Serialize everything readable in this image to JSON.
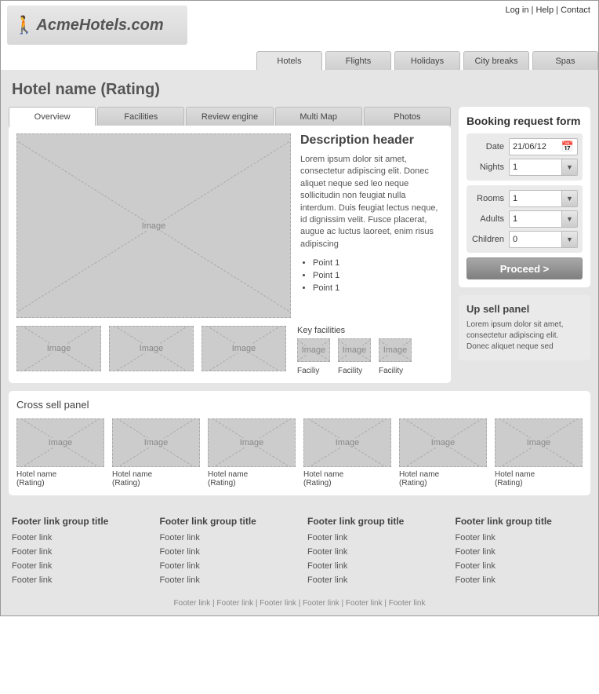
{
  "header": {
    "top_links": [
      "Log in",
      "Help",
      "Contact"
    ],
    "logo_text": "AcmeHotels.com"
  },
  "main_tabs": [
    {
      "label": "Hotels",
      "active": true
    },
    {
      "label": "Flights",
      "active": false
    },
    {
      "label": "Holidays",
      "active": false
    },
    {
      "label": "City breaks",
      "active": false
    },
    {
      "label": "Spas",
      "active": false
    }
  ],
  "page_title": "Hotel name (Rating)",
  "sub_tabs": [
    {
      "label": "Overview",
      "active": true
    },
    {
      "label": "Facilities",
      "active": false
    },
    {
      "label": "Review engine",
      "active": false
    },
    {
      "label": "Multi Map",
      "active": false
    },
    {
      "label": "Photos",
      "active": false
    }
  ],
  "image_label": "Image",
  "description": {
    "header": "Description header",
    "text": "Lorem ipsum dolor sit amet, consectetur adipiscing elit. Donec aliquet neque sed leo neque sollicitudin non feugiat nulla interdum. Duis feugiat lectus neque, id dignissim velit. Fusce placerat, augue ac luctus laoreet, enim risus adipiscing",
    "points": [
      "Point 1",
      "Point 1",
      "Point 1"
    ]
  },
  "key_facilities": {
    "title": "Key facilities",
    "items": [
      "Faciliy",
      "Facility",
      "Facility"
    ]
  },
  "booking": {
    "title": "Booking request form",
    "date_label": "Date",
    "date_value": "21/06/12",
    "nights_label": "Nights",
    "nights_value": "1",
    "rooms_label": "Rooms",
    "rooms_value": "1",
    "adults_label": "Adults",
    "adults_value": "1",
    "children_label": "Children",
    "children_value": "0",
    "proceed_label": "Proceed >"
  },
  "upsell": {
    "title": "Up sell panel",
    "text": "Lorem ipsum dolor sit amet, consectetur adipiscing elit. Donec aliquet neque sed"
  },
  "cross_sell": {
    "title": "Cross sell panel",
    "item_name": "Hotel name",
    "item_rating": "(Rating)",
    "count": 6
  },
  "footer": {
    "col_title": "Footer link group title",
    "link_label": "Footer link",
    "cols": 4,
    "links_per_col": 4,
    "bottom_links": 6
  },
  "colors": {
    "page_bg": "#e5e5e5",
    "panel_bg": "#ffffff",
    "placeholder_bg": "#cccccc",
    "text": "#444444",
    "button_bg_top": "#a8a8a8",
    "button_bg_bottom": "#808080"
  }
}
